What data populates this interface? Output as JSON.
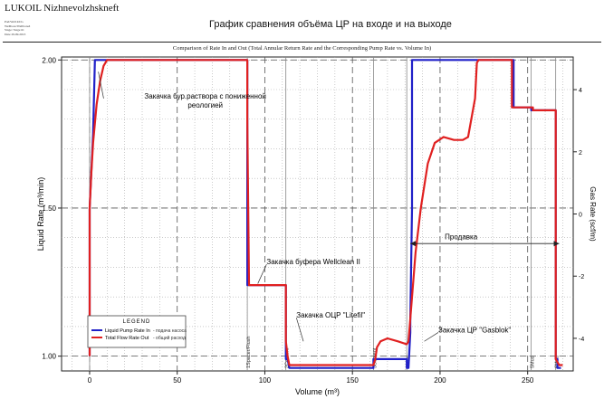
{
  "header": {
    "company": "LUKOIL Nizhnevolzhskneft",
    "well_info": [
      "Pad/Well #2/G",
      "Wellbore/Wellbore#",
      "Stage: Stage #1",
      "Date 29.09.2013"
    ],
    "title": "График сравнения объёма ЦР на входе и на выходе"
  },
  "chart_data": {
    "type": "line",
    "subtitle": "Comparison of Rate In and Out (Total Annular Return Rate and the Corresponding Pump Rate vs. Volume In)",
    "xlabel": "Volume (m³)",
    "ylabel": "Liquid Rate (m³/min)",
    "y2label": "Gas Rate (scf/m)",
    "xlim": [
      -16,
      276
    ],
    "ylim": [
      0.95,
      2.01
    ],
    "y2lim": [
      -5.05,
      5.05
    ],
    "xticks": [
      0,
      50,
      100,
      150,
      200,
      250
    ],
    "yticks": [
      {
        "value": 1.0,
        "label": "1.00"
      },
      {
        "value": 1.5,
        "label": "1.50"
      },
      {
        "value": 2.0,
        "label": "2.00"
      }
    ],
    "y2ticks": [
      -4,
      -2,
      0,
      2,
      4
    ],
    "grid": true,
    "legend_placement": "bottom-left",
    "series": [
      {
        "name": "Liquid Pump Rate In",
        "color": "#2020c8",
        "points": [
          [
            0,
            1.0
          ],
          [
            0,
            1.5
          ],
          [
            2,
            1.75
          ],
          [
            3,
            2.0
          ],
          [
            90,
            2.0
          ],
          [
            90,
            1.9
          ],
          [
            90,
            1.24
          ],
          [
            112,
            1.24
          ],
          [
            112,
            1.04
          ],
          [
            112,
            0.99
          ],
          [
            113,
            0.99
          ],
          [
            114,
            0.96
          ],
          [
            162,
            0.96
          ],
          [
            162,
            0.99
          ],
          [
            181,
            0.99
          ],
          [
            181,
            0.96
          ],
          [
            182,
            0.96
          ],
          [
            183,
            1.08
          ],
          [
            183,
            1.12
          ],
          [
            184,
            1.5
          ],
          [
            184,
            2.0
          ],
          [
            242,
            2.0
          ],
          [
            242,
            1.84
          ],
          [
            252,
            1.84
          ],
          [
            252,
            1.83
          ],
          [
            266,
            1.83
          ],
          [
            266,
            0.99
          ],
          [
            267,
            0.99
          ],
          [
            267,
            0.96
          ],
          [
            269,
            0.96
          ]
        ]
      },
      {
        "name": "Total Flow Rate Out",
        "color": "#e02020",
        "points": [
          [
            0,
            1.0
          ],
          [
            0,
            1.5
          ],
          [
            1,
            1.62
          ],
          [
            2,
            1.72
          ],
          [
            4,
            1.85
          ],
          [
            6,
            1.93
          ],
          [
            8,
            1.98
          ],
          [
            10,
            2.0
          ],
          [
            90,
            2.0
          ],
          [
            90,
            1.8
          ],
          [
            91,
            1.24
          ],
          [
            112,
            1.24
          ],
          [
            112,
            1.05
          ],
          [
            113,
            1.0
          ],
          [
            114,
            0.97
          ],
          [
            162,
            0.97
          ],
          [
            163,
            0.99
          ],
          [
            164,
            1.03
          ],
          [
            166,
            1.05
          ],
          [
            170,
            1.06
          ],
          [
            176,
            1.05
          ],
          [
            181,
            1.04
          ],
          [
            182,
            1.05
          ],
          [
            184,
            1.2
          ],
          [
            186,
            1.35
          ],
          [
            189,
            1.5
          ],
          [
            193,
            1.65
          ],
          [
            197,
            1.72
          ],
          [
            202,
            1.74
          ],
          [
            208,
            1.73
          ],
          [
            213,
            1.73
          ],
          [
            216,
            1.74
          ],
          [
            220,
            1.87
          ],
          [
            221,
            1.99
          ],
          [
            222,
            2.0
          ],
          [
            241,
            2.0
          ],
          [
            241,
            1.84
          ],
          [
            253,
            1.84
          ],
          [
            253,
            1.83
          ],
          [
            266,
            1.83
          ],
          [
            266,
            0.99
          ],
          [
            268,
            0.97
          ],
          [
            270,
            0.97
          ]
        ]
      }
    ],
    "stage_markers": [
      {
        "x": 0,
        "label": ""
      },
      {
        "x": 90,
        "label": "1Spacer/Flush"
      },
      {
        "x": 112,
        "label": "2Cement"
      },
      {
        "x": 162,
        "label": "3Cement"
      },
      {
        "x": 181,
        "label": "4Mud"
      },
      {
        "x": 252,
        "label": "5Mud"
      },
      {
        "x": 266,
        "label": "6Mud"
      }
    ],
    "annotations": [
      {
        "text": "Закачка бур.раствора с пониженной",
        "text2": "реологией",
        "x": 66,
        "y": 1.87,
        "anchor": "middle"
      },
      {
        "text": "Закачка буфера Wellclean II",
        "x": 101,
        "y": 1.31,
        "anchor": "start"
      },
      {
        "text": "Закачка ОЦР \"Litefil\"",
        "x": 118,
        "y": 1.13,
        "anchor": "start"
      },
      {
        "text": "Закачка ЦР \"Gasblok\"",
        "x": 199,
        "y": 1.08,
        "anchor": "start"
      },
      {
        "text": "Продавка",
        "x": 212,
        "y": 1.395,
        "anchor": "middle"
      }
    ],
    "prodavka_arrow": [
      183,
      268,
      1.38
    ],
    "legend": {
      "title": "LEGEND",
      "entries": [
        {
          "label": "Liquid Pump Rate In",
          "note": "- подача насоса"
        },
        {
          "label": "Total Flow Rate Out",
          "note": "- общий расход"
        }
      ]
    }
  }
}
